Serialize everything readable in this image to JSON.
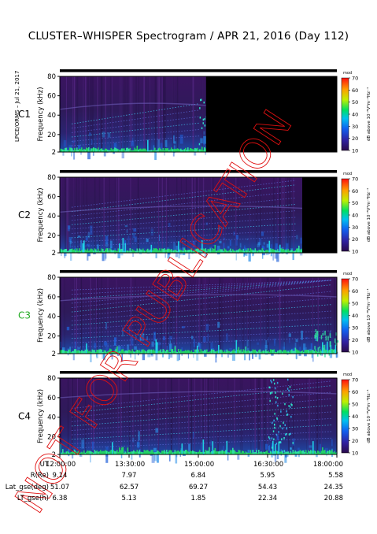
{
  "header": {
    "title": "CLUSTER–WHISPER Spectrogram / APR 21, 2016 (Day 112)",
    "side_tag": "LPCE/ORMS – Jul 21, 2017"
  },
  "watermark": "NOT FOR PUBLICATION",
  "colorbar": {
    "ticks": [
      "70",
      "60",
      "50",
      "40",
      "30",
      "20",
      "10"
    ],
    "label": "dB above 10⁻⁸V²m⁻²Hz⁻¹",
    "badge": "mod"
  },
  "chart_data": {
    "type": "heatmap",
    "title": "CLUSTER–WHISPER Spectrogram / APR 21, 2016 (Day 112)",
    "xlabel": "UT",
    "ylabel": "Frequency (kHz)",
    "y_ticks": [
      2,
      20,
      40,
      60,
      80
    ],
    "ylim": [
      2,
      80
    ],
    "x_ticks": [
      "12:00:00",
      "13:30:00",
      "15:00:00",
      "16:30:00",
      "18:00:00"
    ],
    "xlim": [
      "12:00:00",
      "18:00:00"
    ],
    "clim": [
      10,
      70
    ],
    "panels": [
      {
        "name": "C1",
        "label_color": "#000000",
        "data_gap_from": "15:10:00",
        "data_gap_to": "18:00:00"
      },
      {
        "name": "C2",
        "label_color": "#000000",
        "data_gap_from": "17:15:00",
        "data_gap_to": "18:00:00"
      },
      {
        "name": "C3",
        "label_color": "#22aa22",
        "data_gap_from": null,
        "data_gap_to": null
      },
      {
        "name": "C4",
        "label_color": "#000000",
        "data_gap_from": null,
        "data_gap_to": null
      }
    ],
    "ephemeris": [
      {
        "label": "R(Re)",
        "values": [
          "9.14",
          "7.97",
          "6.84",
          "5.95",
          "5.58"
        ]
      },
      {
        "label": "Lat_gse(deg)",
        "values": [
          "51.07",
          "62.57",
          "69.27",
          "54.43",
          "24.35"
        ]
      },
      {
        "label": "LT_gse(h)",
        "values": [
          "6.38",
          "5.13",
          "1.85",
          "22.34",
          "20.88"
        ]
      }
    ]
  }
}
